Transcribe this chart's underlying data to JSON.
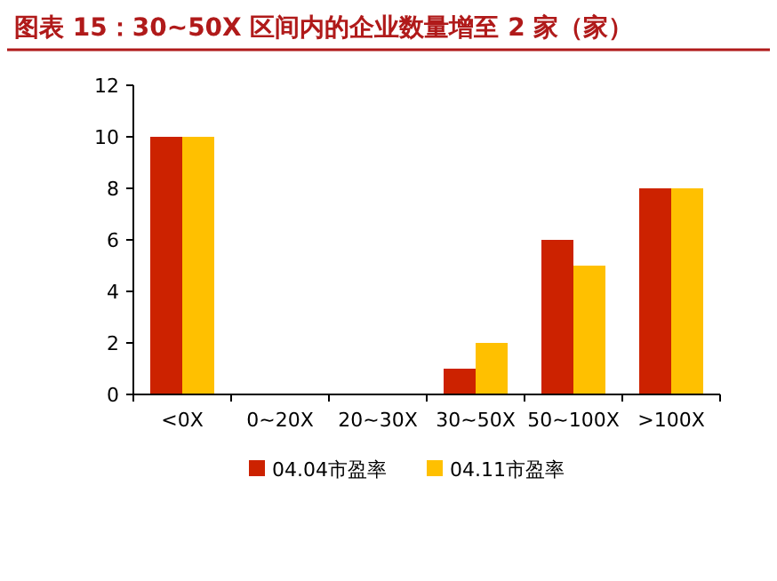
{
  "chart_data": {
    "type": "bar",
    "title": "图表 15：30~50X 区间内的企业数量增至 2 家（家）",
    "categories": [
      "<0X",
      "0~20X",
      "20~30X",
      "30~50X",
      "50~100X",
      ">100X"
    ],
    "series": [
      {
        "name": "04.04市盈率",
        "color": "#cc2200",
        "values": [
          10,
          0,
          0,
          1,
          6,
          8
        ]
      },
      {
        "name": "04.11市盈率",
        "color": "#ffc000",
        "values": [
          10,
          0,
          0,
          2,
          5,
          8
        ]
      }
    ],
    "ylim": [
      0,
      12
    ],
    "yticks": [
      0,
      2,
      4,
      6,
      8,
      10,
      12
    ],
    "grid": false,
    "legend": "bottom"
  }
}
